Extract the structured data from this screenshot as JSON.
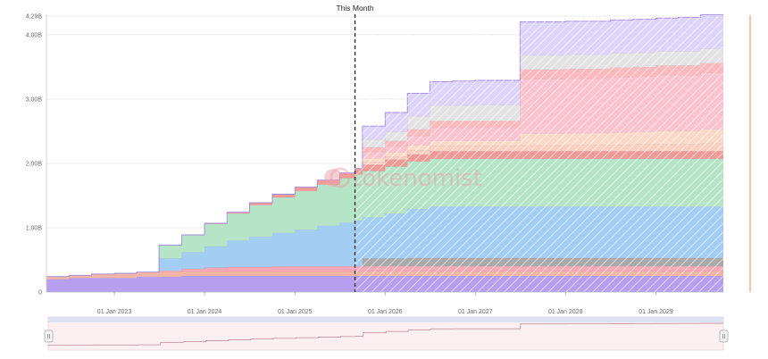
{
  "chart_data": {
    "type": "area",
    "stacked": true,
    "title": "",
    "xlabel": "",
    "ylabel": "",
    "x_ticks": [
      "01 Jan 2023",
      "01 Jan 2024",
      "01 Jan 2025",
      "01 Jan 2026",
      "01 Jan 2027",
      "01 Jan 2028",
      "01 Jan 2029"
    ],
    "y_ticks": [
      "0",
      "1.00B",
      "2.00B",
      "3.00B",
      "4.00B",
      "4.29B"
    ],
    "y_tick_values": [
      0,
      1.0,
      2.0,
      3.0,
      4.0,
      4.29
    ],
    "ylim": [
      0,
      4.29
    ],
    "xlim": [
      "2022-04-01",
      "2029-10-01"
    ],
    "grid": true,
    "watermark": "tokenomist",
    "this_month": {
      "label": "This Month",
      "date": "2025-09-01"
    },
    "x": [
      "2022-04",
      "2022-07",
      "2022-10",
      "2023-01",
      "2023-04",
      "2023-07",
      "2023-10",
      "2024-01",
      "2024-04",
      "2024-07",
      "2024-10",
      "2025-01",
      "2025-04",
      "2025-07",
      "2025-09",
      "2025-10",
      "2026-01",
      "2026-04",
      "2026-07",
      "2026-10",
      "2027-01",
      "2027-04",
      "2027-07",
      "2027-10",
      "2028-01",
      "2028-04",
      "2028-07",
      "2028-10",
      "2029-01",
      "2029-04",
      "2029-07",
      "2029-10"
    ],
    "series": [
      {
        "color": "#b79ff0",
        "values": [
          0.2,
          0.22,
          0.22,
          0.22,
          0.24,
          0.24,
          0.25,
          0.25,
          0.25,
          0.25,
          0.25,
          0.25,
          0.25,
          0.25,
          0.25,
          0.25,
          0.25,
          0.25,
          0.25,
          0.25,
          0.25,
          0.25,
          0.25,
          0.25,
          0.25,
          0.25,
          0.25,
          0.25,
          0.25,
          0.25,
          0.25,
          0.25
        ]
      },
      {
        "color": "#f3b6a4",
        "values": [
          0.04,
          0.04,
          0.06,
          0.07,
          0.07,
          0.07,
          0.07,
          0.07,
          0.07,
          0.07,
          0.07,
          0.07,
          0.07,
          0.07,
          0.07,
          0.07,
          0.07,
          0.07,
          0.07,
          0.07,
          0.07,
          0.07,
          0.07,
          0.07,
          0.07,
          0.07,
          0.07,
          0.07,
          0.07,
          0.07,
          0.07,
          0.07
        ]
      },
      {
        "color": "#f7a7b6",
        "values": [
          0.0,
          0.0,
          0.0,
          0.0,
          0.0,
          0.02,
          0.04,
          0.06,
          0.07,
          0.07,
          0.08,
          0.08,
          0.08,
          0.08,
          0.08,
          0.08,
          0.08,
          0.08,
          0.08,
          0.08,
          0.08,
          0.08,
          0.08,
          0.08,
          0.08,
          0.08,
          0.08,
          0.08,
          0.08,
          0.08,
          0.08,
          0.08
        ]
      },
      {
        "color": "#a9a9a9",
        "values": [
          0.0,
          0.0,
          0.0,
          0.0,
          0.0,
          0.0,
          0.0,
          0.0,
          0.0,
          0.0,
          0.0,
          0.0,
          0.0,
          0.0,
          0.0,
          0.12,
          0.12,
          0.13,
          0.13,
          0.13,
          0.13,
          0.13,
          0.13,
          0.13,
          0.13,
          0.13,
          0.13,
          0.13,
          0.13,
          0.13,
          0.13,
          0.13
        ]
      },
      {
        "color": "#a4cdf4",
        "values": [
          0.0,
          0.0,
          0.0,
          0.0,
          0.0,
          0.19,
          0.26,
          0.33,
          0.41,
          0.47,
          0.52,
          0.57,
          0.63,
          0.68,
          0.71,
          0.64,
          0.7,
          0.76,
          0.8,
          0.8,
          0.8,
          0.8,
          0.8,
          0.8,
          0.8,
          0.8,
          0.8,
          0.8,
          0.8,
          0.8,
          0.8,
          0.8
        ]
      },
      {
        "color": "#b5e4c6",
        "values": [
          0.0,
          0.0,
          0.0,
          0.0,
          0.0,
          0.21,
          0.27,
          0.35,
          0.42,
          0.49,
          0.55,
          0.6,
          0.64,
          0.69,
          0.72,
          0.72,
          0.73,
          0.74,
          0.74,
          0.74,
          0.74,
          0.74,
          0.74,
          0.74,
          0.74,
          0.74,
          0.74,
          0.74,
          0.74,
          0.74,
          0.74,
          0.74
        ]
      },
      {
        "color": "#f09a98",
        "values": [
          0.0,
          0.0,
          0.0,
          0.0,
          0.0,
          0.0,
          0.0,
          0.01,
          0.02,
          0.04,
          0.05,
          0.06,
          0.07,
          0.08,
          0.09,
          0.1,
          0.11,
          0.11,
          0.12,
          0.12,
          0.12,
          0.12,
          0.12,
          0.12,
          0.12,
          0.12,
          0.12,
          0.12,
          0.12,
          0.12,
          0.12,
          0.12
        ]
      },
      {
        "color": "#f9cfc0",
        "values": [
          0.0,
          0.0,
          0.0,
          0.0,
          0.0,
          0.0,
          0.0,
          0.0,
          0.0,
          0.0,
          0.0,
          0.0,
          0.0,
          0.0,
          0.0,
          0.04,
          0.05,
          0.06,
          0.08,
          0.08,
          0.08,
          0.08,
          0.09,
          0.09,
          0.1,
          0.1,
          0.1,
          0.11,
          0.11,
          0.11,
          0.12,
          0.12
        ]
      },
      {
        "color": "#fbd9c8",
        "values": [
          0.0,
          0.0,
          0.0,
          0.0,
          0.0,
          0.0,
          0.0,
          0.0,
          0.0,
          0.0,
          0.0,
          0.0,
          0.0,
          0.0,
          0.0,
          0.06,
          0.06,
          0.08,
          0.08,
          0.08,
          0.08,
          0.08,
          0.18,
          0.18,
          0.18,
          0.18,
          0.19,
          0.19,
          0.2,
          0.2,
          0.22,
          0.22
        ]
      },
      {
        "color": "#f9c4cf",
        "values": [
          0.0,
          0.0,
          0.0,
          0.0,
          0.0,
          0.0,
          0.0,
          0.0,
          0.0,
          0.0,
          0.0,
          0.0,
          0.0,
          0.0,
          0.0,
          0.1,
          0.1,
          0.15,
          0.2,
          0.2,
          0.2,
          0.2,
          0.85,
          0.85,
          0.85,
          0.85,
          0.86,
          0.86,
          0.87,
          0.87,
          0.88,
          0.88
        ]
      },
      {
        "color": "#fbb9be",
        "values": [
          0.0,
          0.0,
          0.0,
          0.0,
          0.0,
          0.0,
          0.0,
          0.0,
          0.0,
          0.0,
          0.0,
          0.0,
          0.0,
          0.0,
          0.0,
          0.07,
          0.08,
          0.1,
          0.11,
          0.11,
          0.11,
          0.11,
          0.15,
          0.15,
          0.15,
          0.15,
          0.15,
          0.15,
          0.15,
          0.15,
          0.15,
          0.15
        ]
      },
      {
        "color": "#e3e3e3",
        "values": [
          0.0,
          0.0,
          0.0,
          0.0,
          0.0,
          0.0,
          0.0,
          0.0,
          0.0,
          0.0,
          0.0,
          0.0,
          0.0,
          0.0,
          0.0,
          0.12,
          0.14,
          0.2,
          0.24,
          0.24,
          0.25,
          0.25,
          0.22,
          0.22,
          0.22,
          0.22,
          0.22,
          0.22,
          0.22,
          0.22,
          0.22,
          0.22
        ]
      },
      {
        "color": "#ddd4f9",
        "values": [
          0.0,
          0.0,
          0.0,
          0.0,
          0.0,
          0.0,
          0.0,
          0.0,
          0.0,
          0.0,
          0.0,
          0.0,
          0.0,
          0.0,
          0.0,
          0.21,
          0.3,
          0.36,
          0.37,
          0.38,
          0.38,
          0.38,
          0.52,
          0.52,
          0.52,
          0.52,
          0.52,
          0.52,
          0.52,
          0.53,
          0.53,
          0.53
        ]
      }
    ]
  }
}
